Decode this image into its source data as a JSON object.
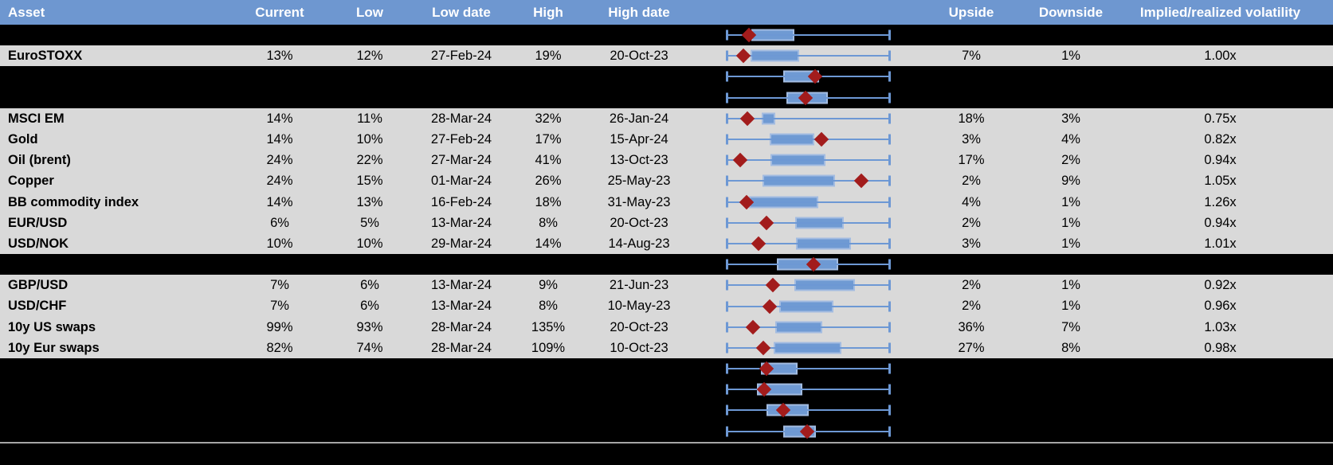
{
  "colors": {
    "header_bg": "#6E97D0",
    "header_text": "#FFFFFF",
    "row_gray": "#D9D9D9",
    "row_black": "#000000",
    "box_fill": "#6F9AD3",
    "box_border": "#A3BCE1",
    "whisker": "#6D98D4",
    "marker": "#A21C1C",
    "separator": "#A6A6A6",
    "body_text": "#000000"
  },
  "chart_data": {
    "type": "table",
    "title": "Implied volatility monitor with 12-month range box plots",
    "legend_position": "none",
    "grid": false,
    "boxplot_axis_note": "Box plot column has no tick labels; box_start, box_end and marker are expressed as 0-100 percent of the whisker span (whisker caps at 0 and 100).",
    "columns": [
      {
        "key": "asset",
        "label": "Asset"
      },
      {
        "key": "current",
        "label": "Current"
      },
      {
        "key": "low",
        "label": "Low"
      },
      {
        "key": "low_date",
        "label": "Low date"
      },
      {
        "key": "high",
        "label": "High"
      },
      {
        "key": "high_date",
        "label": "High date"
      },
      {
        "key": "chart",
        "label": ""
      },
      {
        "key": "upside",
        "label": "Upside"
      },
      {
        "key": "downside",
        "label": "Downside"
      },
      {
        "key": "impl_real_vol",
        "label": "Implied/realized volatility"
      }
    ],
    "rows": [
      {
        "variant": "black",
        "boxplot": {
          "box_start": 15.1,
          "box_end": 41.5,
          "marker": 13.7
        }
      },
      {
        "variant": "gray",
        "asset": "EuroSTOXX",
        "current": "13%",
        "low": "12%",
        "low_date": "27-Feb-24",
        "high": "19%",
        "high_date": "20-Oct-23",
        "upside": "7%",
        "downside": "1%",
        "impl_real_vol": "1.00x",
        "boxplot": {
          "box_start": 14.6,
          "box_end": 44.4,
          "marker": 10.2
        }
      },
      {
        "variant": "black",
        "boxplot": {
          "box_start": 34.6,
          "box_end": 56.6,
          "marker": 54.1
        }
      },
      {
        "variant": "black",
        "boxplot": {
          "box_start": 36.6,
          "box_end": 62.0,
          "marker": 48.3
        }
      },
      {
        "variant": "gray",
        "asset": "MSCI EM",
        "current": "14%",
        "low": "11%",
        "low_date": "28-Mar-24",
        "high": "32%",
        "high_date": "26-Jan-24",
        "upside": "18%",
        "downside": "3%",
        "impl_real_vol": "0.75x",
        "boxplot": {
          "box_start": 21.5,
          "box_end": 29.8,
          "marker": 12.7
        }
      },
      {
        "variant": "gray",
        "asset": "Gold",
        "current": "14%",
        "low": "10%",
        "low_date": "27-Feb-24",
        "high": "17%",
        "high_date": "15-Apr-24",
        "upside": "3%",
        "downside": "4%",
        "impl_real_vol": "0.82x",
        "boxplot": {
          "box_start": 26.3,
          "box_end": 53.7,
          "marker": 58.0
        }
      },
      {
        "variant": "gray",
        "asset": "Oil (brent)",
        "current": "24%",
        "low": "22%",
        "low_date": "27-Mar-24",
        "high": "41%",
        "high_date": "13-Oct-23",
        "upside": "17%",
        "downside": "2%",
        "impl_real_vol": "0.94x",
        "boxplot": {
          "box_start": 26.8,
          "box_end": 60.5,
          "marker": 8.3
        }
      },
      {
        "variant": "gray",
        "asset": "Copper",
        "current": "24%",
        "low": "15%",
        "low_date": "01-Mar-24",
        "high": "26%",
        "high_date": "25-May-23",
        "upside": "2%",
        "downside": "9%",
        "impl_real_vol": "1.05x",
        "boxplot": {
          "box_start": 22.0,
          "box_end": 66.3,
          "marker": 82.4
        }
      },
      {
        "variant": "gray",
        "asset": "BB commodity index",
        "current": "14%",
        "low": "13%",
        "low_date": "16-Feb-24",
        "high": "18%",
        "high_date": "31-May-23",
        "upside": "4%",
        "downside": "1%",
        "impl_real_vol": "1.26x",
        "boxplot": {
          "box_start": 13.7,
          "box_end": 56.1,
          "marker": 12.2
        }
      },
      {
        "variant": "gray",
        "asset": "EUR/USD",
        "current": "6%",
        "low": "5%",
        "low_date": "13-Mar-24",
        "high": "8%",
        "high_date": "20-Oct-23",
        "upside": "2%",
        "downside": "1%",
        "impl_real_vol": "0.94x",
        "boxplot": {
          "box_start": 42.0,
          "box_end": 71.7,
          "marker": 24.4
        }
      },
      {
        "variant": "gray",
        "asset": "USD/NOK",
        "current": "10%",
        "low": "10%",
        "low_date": "29-Mar-24",
        "high": "14%",
        "high_date": "14-Aug-23",
        "upside": "3%",
        "downside": "1%",
        "impl_real_vol": "1.01x",
        "boxplot": {
          "box_start": 42.4,
          "box_end": 76.1,
          "marker": 19.5
        }
      },
      {
        "variant": "black",
        "boxplot": {
          "box_start": 30.7,
          "box_end": 68.3,
          "marker": 53.2
        }
      },
      {
        "variant": "gray",
        "asset": "GBP/USD",
        "current": "7%",
        "low": "6%",
        "low_date": "13-Mar-24",
        "high": "9%",
        "high_date": "21-Jun-23",
        "upside": "2%",
        "downside": "1%",
        "impl_real_vol": "0.92x",
        "boxplot": {
          "box_start": 41.5,
          "box_end": 78.5,
          "marker": 28.3
        }
      },
      {
        "variant": "gray",
        "asset": "USD/CHF",
        "current": "7%",
        "low": "6%",
        "low_date": "13-Mar-24",
        "high": "8%",
        "high_date": "10-May-23",
        "upside": "2%",
        "downside": "1%",
        "impl_real_vol": "0.96x",
        "boxplot": {
          "box_start": 32.2,
          "box_end": 65.4,
          "marker": 26.3
        }
      },
      {
        "variant": "gray",
        "asset": "10y US swaps",
        "current": "99%",
        "low": "93%",
        "low_date": "28-Mar-24",
        "high": "135%",
        "high_date": "20-Oct-23",
        "upside": "36%",
        "downside": "7%",
        "impl_real_vol": "1.03x",
        "boxplot": {
          "box_start": 29.8,
          "box_end": 58.5,
          "marker": 16.1
        }
      },
      {
        "variant": "gray",
        "asset": "10y Eur swaps",
        "current": "82%",
        "low": "74%",
        "low_date": "28-Mar-24",
        "high": "109%",
        "high_date": "10-Oct-23",
        "upside": "27%",
        "downside": "8%",
        "impl_real_vol": "0.98x",
        "boxplot": {
          "box_start": 28.8,
          "box_end": 70.2,
          "marker": 22.4
        }
      },
      {
        "variant": "black",
        "boxplot": {
          "box_start": 21.0,
          "box_end": 43.4,
          "marker": 24.4
        }
      },
      {
        "variant": "black",
        "boxplot": {
          "box_start": 18.5,
          "box_end": 46.3,
          "marker": 22.9
        }
      },
      {
        "variant": "black",
        "boxplot": {
          "box_start": 24.4,
          "box_end": 50.2,
          "marker": 34.6
        }
      },
      {
        "variant": "black",
        "boxplot": {
          "box_start": 34.6,
          "box_end": 54.6,
          "marker": 49.3
        }
      }
    ]
  }
}
